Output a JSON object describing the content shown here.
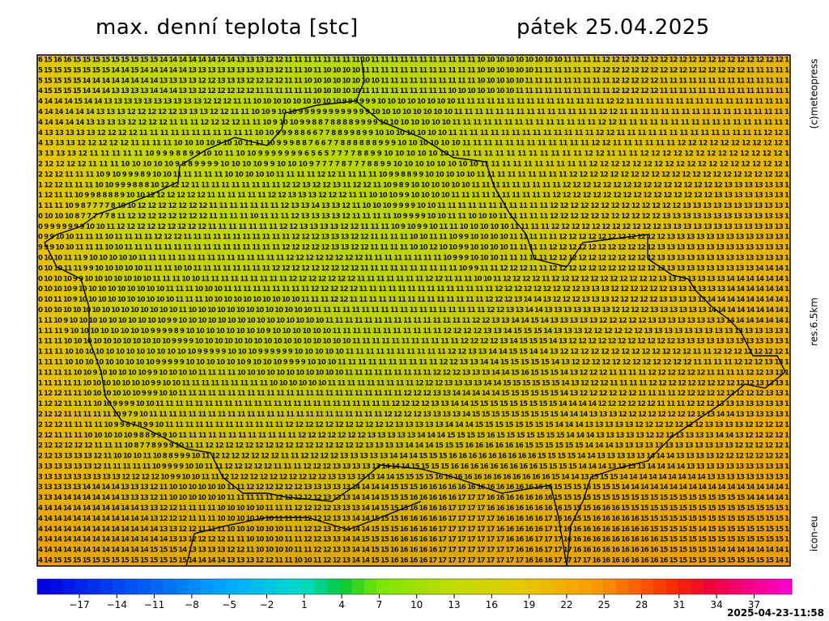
{
  "header": {
    "title": "max. denní teplota [stc]",
    "date": "pátek 25.04.2025"
  },
  "side": {
    "copyright": "(c)meteopress",
    "resolution": "res.6.5km",
    "model": "icon-eu"
  },
  "footer": {
    "timestamp": "2025-04-23-11:58"
  },
  "colorbar": {
    "labels": [
      "−17",
      "−14",
      "−11",
      "−8",
      "−5",
      "−2",
      "1",
      "4",
      "7",
      "10",
      "13",
      "16",
      "19",
      "22",
      "25",
      "28",
      "31",
      "34",
      "37"
    ]
  },
  "map": {
    "rows": [
      "6 15 16 16 15 15 15 15 15 15 15 15 15 14 14 14 14 14 14 14 14 13 13 13 12 12 11 11 11 11 11 11 11 11 10 11 11 11 11 11 11 11 11 11 11 11 10 10 10 10 10 10 10 10 10 11 11 11 11 12 12 12 12 12 12 12 12 12 12 12 12 12 12 12 12 12 12 12 1",
      "5 15 15 15 15 15 15 15 14 14 15 14 14 14 14 14 13 13 13 13 13 13 13 13 13 12 11 11 10 11 10 10 10 10 11 11 11 11 11 11 11 11 11 11 11 11 10 10 10 10 10 10 11 11 11 11 11 11 12 12 12 12 12 12 12 12 12 12 12 12 12 12 12 12 11 11 11 11 1",
      "5 15 15 15 15 14 14 14 14 14 14 14 14 13 13 13 13 12 12 13 13 13 12 12 12 12 11 11 10 10 10 10 10 10 10 10 11 11 11 11 11 11 11 11 11 11 10 10 10 10 10 11 11 11 11 11 11 11 11 11 12 12 12 12 12 11 11 11 11 11 11 11 11 11 11 11 11 11 1",
      "4 15 15 15 15 14 14 14 13 13 13 13 14 14 14 13 13 12 12 12 12 12 12 11 11 11 11 11 11 10 10 10 10 10 11 11 11 11 11 11 11 11 11 10 10 10 10 10 10 10 11 11 11 11 11 11 11 11 11 11 12 12 12 12 12 11 11 11 11 11 11 11 11 11 11 11 11 11 1",
      "4 14 14 14 15 14 14 13 13 13 13 13 13 13 13 13 13 12 12 12 11 11 10 10 10 10 10 10 10 10 10 9 9 9 9 9 9 10 10 10 10 10 10 10 10 11 11 11 11 11 11 11 11 11 11 11 11 11 11 11 12 12 11 11 11 11 11 11 11 11 11 11 11 11 11 11 11 11 1",
      "4 14 14 14 14 14 13 13 13 12 12 12 12 12 13 13 13 12 12 11 11 10 10 9 10 10 9 9 9 9 9 9 9 9 9 9 9 9 10 10 10 10 10 10 10 10 11 11 11 11 11 11 11 11 11 11 11 11 11 11 12 12 11 11 11 11 11 11 11 11 11 11 11 11 11 11 11 11 1",
      "4 14 14 14 14 13 13 13 13 12 12 12 12 11 11 11 12 12 12 12 11 11 10 9 10 10 9 9 8 8 7 8 8 8 8 9 9 9 9 10 10 10 10 10 10 10 11 11 11 11 11 11 11 11 11 11 11 11 11 11 12 12 11 11 11 11 11 11 11 11 11 11 11 11 11 11 11 11 1",
      "4 13 13 13 13 13 12 12 12 12 11 11 11 11 11 11 11 11 11 11 11 10 10 9 9 9 8 8 6 6 7 7 8 8 9 9 8 9 9 10 10 10 10 10 10 10 11 11 11 11 11 11 11 11 11 11 11 11 11 11 12 12 11 11 11 11 11 11 11 11 11 11 11 11 11 11 12 12 1",
      "4 13 13 13 12 12 12 12 12 11 11 11 11 10 10 10 10 9 10 10 11 11 10 9 9 9 8 8 7 6 6 7 7 8 8 8 8 8 8 9 9 9 10 10 10 10 10 10 11 11 11 11 11 11 11 11 11 11 11 11 12 12 11 11 11 11 11 11 12 12 12 12 12 12 12 12 12 12 1",
      "3 13 13 13 12 11 11 11 11 11 10 9 9 9 8 8 9 9 10 10 11 10 10 9 9 9 9 9 9 9 6 5 6 5 7 7 7 7 8 8 9 9 10 10 10 10 10 10 11 11 11 11 11 11 11 11 11 11 11 11 12 12 11 11 11 12 12 12 12 12 12 12 12 12 12 12 12 12 1",
      "2 12 12 12 12 11 11 11 10 10 10 10 10 9 8 8 9 9 9 9 10 10 10 10 9 9 10 10 10 9 7 7 7 7 8 7 7 7 8 8 9 9 10 10 10 10 10 10 10 10 11 11 11 11 11 11 11 11 11 11 12 12 12 12 12 12 12 12 12 12 12 12 12 12 12 12 12 12 1",
      "2 12 12 11 11 11 10 9 10 9 9 9 8 9 10 10 11 11 11 11 11 10 10 10 10 10 11 11 11 11 12 12 11 11 11 11 10 9 9 8 8 9 9 10 10 10 10 10 11 11 11 11 11 11 11 11 11 12 12 12 12 12 12 12 12 12 12 12 12 12 12 12 12 12 12 12 12 12 1",
      "1 12 12 11 11 11 10 10 9 9 9 8 8 8 10 12 12 12 11 11 11 11 11 11 11 11 11 12 12 13 12 12 13 11 12 12 11 10 9 8 9 10 10 10 10 10 10 11 11 11 11 11 11 11 11 11 12 12 12 12 12 12 12 12 12 12 12 12 12 12 12 12 13 13 13 13 13 13 1",
      "1 12 11 11 10 9 9 8 8 8 8 9 10 10 12 12 12 12 12 12 11 11 11 11 11 11 12 12 13 13 13 12 12 12 11 11 10 10 10 9 9 10 10 10 10 11 11 11 11 11 11 11 11 11 11 12 12 12 12 12 12 12 12 12 12 12 12 12 12 12 12 13 13 13 13 13 13 13 1",
      "1 11 11 10 9 8 7 7 7 7 8 10 10 12 12 12 12 12 12 12 11 11 11 11 11 11 11 12 13 13 14 13 13 12 11 10 10 10 9 9 9 9 10 10 11 11 11 11 11 11 11 11 11 11 11 12 12 12 12 12 12 12 12 12 12 12 12 12 13 13 13 13 13 13 13 13 13 13 1",
      "0 10 10 10 8 7 7 7 7 7 8 11 12 12 12 12 12 12 12 12 11 11 11 11 10 11 11 11 12 13 13 13 13 12 11 11 11 11 10 9 9 9 9 10 10 11 11 10 10 10 11 11 11 11 11 12 12 12 12 12 12 12 12 12 12 12 13 13 13 13 13 13 13 13 13 13 13 13 1",
      "0 9 9 9 9 9 9 9 10 10 11 12 12 12 12 12 12 12 12 12 11 11 11 11 11 11 11 12 12 13 13 13 13 12 12 11 11 11 10 9 10 9 9 10 11 11 10 10 10 10 10 11 11 11 11 12 12 12 12 12 12 12 12 12 12 12 13 13 13 13 13 13 13 13 13 13 13 13 1",
      "0 9 9 10 10 11 11 11 10 11 11 11 11 12 12 12 11 11 11 11 11 11 11 11 11 11 11 12 12 12 13 13 13 12 12 11 11 11 11 10 10 11 11 10 9 9 10 10 10 10 11 11 11 11 11 12 12 12 12 12 12 12 12 12 12 12 13 13 13 13 13 13 13 13 13 13 13 13 1",
      "9 9 9 10 10 11 11 11 10 10 11 11 11 11 11 11 11 11 11 11 11 11 11 11 11 11 12 12 12 12 12 13 13 12 12 11 11 11 11 10 10 12 10 10 9 9 10 10 10 10 11 11 11 11 12 12 12 12 12 12 12 12 12 12 12 13 13 13 13 13 13 13 13 13 13 13 13 13 1",
      "0 10 10 11 11 9 10 10 10 10 10 11 11 11 11 11 11 11 11 11 11 11 11 11 11 11 12 12 12 12 12 12 12 12 11 11 11 11 11 11 11 11 10 9 9 9 10 10 10 11 11 11 11 11 12 12 12 12 12 12 12 12 12 12 12 13 13 13 13 13 13 13 13 13 13 13 13 13 1",
      "0 10 10 11 11 9 9 10 10 10 10 10 11 11 11 10 10 11 11 11 11 11 11 11 11 12 12 12 12 12 12 12 12 12 11 11 11 11 11 11 11 11 11 11 10 9 9 11 11 12 12 12 11 11 12 12 12 12 12 12 12 12 12 12 12 13 13 13 13 13 13 13 13 13 13 14 14 14 1",
      "0 10 10 10 9 9 10 10 10 10 10 10 10 11 11 11 10 10 11 11 11 11 11 11 11 11 11 12 12 12 12 12 12 12 11 11 11 11 11 11 11 12 12 11 11 11 10 10 11 12 12 12 12 11 12 12 12 12 12 12 12 12 12 12 12 13 13 13 13 13 13 13 14 14 14 14 14 14 1",
      "0 10 10 10 9 10 10 10 10 10 10 10 10 10 11 11 11 10 10 10 11 11 11 11 11 11 11 11 11 12 12 12 12 12 11 11 11 11 11 11 11 11 11 11 11 11 11 11 12 12 12 12 12 12 12 12 12 13 13 13 12 12 12 12 12 12 13 13 13 13 13 13 14 14 14 14 14 14 1",
      "0 10 11 10 9 10 10 10 10 10 10 10 10 10 10 11 11 11 10 10 10 10 10 10 10 10 10 10 11 11 11 12 12 11 11 11 11 11 11 11 11 11 11 11 11 11 11 12 12 12 13 14 14 13 12 12 12 13 13 13 12 12 12 12 12 13 13 13 13 13 14 14 14 14 14 14 14 14 1",
      "0 10 10 10 10 10 10 10 10 10 10 10 10 10 10 11 10 10 10 10 10 10 10 10 10 10 10 10 10 11 11 11 11 11 11 11 11 11 11 11 11 11 11 11 11 11 11 12 12 13 13 14 14 13 13 13 13 13 13 13 12 12 12 12 13 13 13 13 13 13 14 14 14 14 14 14 14 14 1",
      "1 11 10 9 10 10 10 10 10 10 10 10 10 10 9 9 10 10 10 10 10 10 10 10 10 10 10 10 10 10 10 11 11 11 11 11 11 11 11 11 11 11 11 11 11 11 12 12 13 13 14 14 15 14 13 13 13 13 13 12 12 12 12 12 13 13 13 13 13 13 13 13 14 14 14 14 14 14 1",
      "1 11 11 9 10 10 10 10 10 10 10 10 9 9 9 9 8 9 10 10 10 10 10 10 10 10 9 10 10 10 10 10 10 11 11 11 11 11 11 11 11 11 11 11 12 12 12 12 13 13 14 15 15 15 14 13 13 13 12 12 12 12 12 12 13 13 13 13 13 13 13 13 13 13 13 13 13 13 1",
      "1 11 11 10 10 10 10 10 10 10 10 10 10 10 9 9 9 9 10 10 10 10 10 10 10 10 10 10 10 10 10 10 10 10 11 11 11 11 11 11 11 11 11 11 11 12 12 12 12 13 14 15 15 15 14 13 12 12 12 12 12 12 12 12 12 12 12 13 13 13 13 13 13 13 13 13 13 13 1",
      "1 11 11 10 10 10 10 10 10 10 10 10 10 10 10 10 9 9 9 9 9 10 10 10 9 9 9 9 9 9 10 10 10 10 10 11 11 11 11 11 11 11 11 11 11 12 12 13 13 14 14 15 15 14 14 13 12 12 12 12 12 12 12 12 12 12 12 12 12 11 11 12 12 12 12 12 12 12 1",
      "1 11 11 10 10 10 10 10 10 10 10 10 9 9 9 9 9 10 10 10 10 10 10 9 10 10 10 9 9 9 9 10 10 10 11 11 11 11 11 11 11 11 11 11 12 12 13 13 14 14 15 15 15 15 15 14 13 12 12 12 12 12 12 12 12 12 12 12 12 11 11 11 11 12 12 12 13 13 1",
      "1 11 11 11 10 10 9 10 10 10 10 10 9 9 10 10 10 10 11 11 11 11 10 10 10 10 10 10 10 10 10 10 10 11 11 11 11 11 11 11 11 11 12 12 12 13 13 13 14 14 15 16 15 15 15 14 13 12 12 12 11 11 11 11 12 12 12 12 12 12 11 11 11 11 12 12 13 13 1",
      "1 11 11 11 11 10 10 10 10 10 10 10 9 9 10 10 11 11 11 11 11 11 11 11 11 10 10 10 10 10 10 11 11 11 11 11 11 11 11 11 12 12 12 13 13 13 13 14 14 15 15 15 15 15 15 14 13 12 12 12 11 11 11 11 12 12 12 12 12 12 12 12 12 12 12 13 13 13 1",
      "1 12 12 11 11 10 10 10 10 10 10 9 9 9 10 10 11 11 11 11 11 11 11 11 11 11 11 11 11 11 11 11 11 11 11 11 11 11 11 12 12 12 13 13 14 14 14 14 14 15 15 15 15 15 15 14 13 12 12 12 12 12 12 11 11 11 11 12 12 12 12 12 12 12 12 12 13 13 1",
      "1 12 12 11 11 11 10 10 9 9 9 9 10 10 11 11 11 11 11 11 11 11 11 11 11 11 11 11 11 11 11 11 11 11 11 11 11 11 12 12 12 12 13 13 14 14 15 15 15 15 15 15 15 15 15 14 14 14 14 12 12 12 12 12 12 11 11 11 12 12 12 13 13 13 13 13 13 13 1",
      "2 12 12 11 11 11 11 11 10 9 7 9 10 11 11 11 11 11 11 11 11 11 11 11 11 11 11 11 11 11 11 11 11 11 11 11 11 12 12 12 12 13 13 13 13 14 15 15 15 15 15 15 15 15 15 14 14 14 13 13 13 12 12 12 12 12 12 12 12 13 13 14 14 13 13 13 13 13 1",
      "2 12 12 11 11 11 11 10 9 9 8 7 8 9 9 10 11 11 11 11 11 11 11 11 11 11 11 11 12 12 12 12 12 12 12 12 12 12 12 13 13 13 13 13 14 14 14 15 15 15 15 15 15 15 15 14 14 14 13 13 13 13 13 12 12 12 12 12 12 12 13 13 13 13 12 12 12 12 1",
      "2 12 11 11 11 10 10 10 10 10 9 8 8 9 9 9 10 11 11 11 11 11 11 11 11 11 11 11 11 12 12 12 12 12 12 12 13 13 13 13 13 14 14 14 15 15 15 15 16 15 15 15 15 15 15 15 14 14 14 13 13 13 13 13 12 12 12 13 13 13 13 14 14 13 12 12 12 12 1",
      "2 12 12 12 12 12 11 11 11 10 8 7 7 8 9 9 9 10 11 11 12 12 12 12 12 12 12 12 12 12 12 12 12 12 12 12 13 13 13 13 14 14 14 15 15 15 16 16 16 16 16 16 15 15 15 15 15 15 14 14 14 13 13 13 13 13 13 13 13 13 13 13 13 12 12 12 12 12 1",
      "2 12 13 13 13 13 12 11 10 10 10 11 10 8 8 9 9 9 10 11 12 12 12 12 12 12 12 11 11 12 12 12 12 13 13 13 13 13 14 14 14 15 15 15 16 16 16 16 16 16 16 16 16 15 15 15 15 14 14 13 13 13 13 13 14 14 14 13 13 13 13 12 12 12 12 12 12 12 1",
      "3 13 13 13 13 13 12 11 11 11 11 11 10 9 9 9 9 10 10 11 11 12 12 12 12 12 11 11 11 12 12 12 13 13 13 13 13 14 14 14 15 15 15 15 16 16 16 16 16 16 16 16 16 15 15 15 15 14 14 14 13 13 13 13 14 14 14 14 13 13 13 13 13 13 13 13 13 13 1",
      "3 13 13 13 13 13 13 13 13 12 12 12 12 10 9 9 10 10 11 11 12 12 12 12 12 12 12 12 12 12 12 13 13 13 13 13 14 14 15 15 15 15 16 16 16 16 16 16 16 16 16 16 16 16 15 14 14 13 15 15 15 14 14 14 14 14 14 14 14 14 13 13 13 13 13 13 13 13 1",
      "3 13 13 13 13 14 14 14 14 13 13 13 12 11 10 10 10 10 10 10 11 11 12 12 12 12 12 12 13 13 13 13 13 14 14 14 14 15 15 15 16 16 16 16 16 16 16 16 16 16 16 16 16 16 15 15 15 15 15 15 15 14 14 14 14 14 14 14 14 14 14 14 14 14 14 14 14 14 1",
      "3 13 14 14 14 14 14 14 14 13 13 13 12 11 10 10 10 10 10 10 11 11 11 11 11 12 12 12 12 12 13 13 13 14 14 14 15 15 15 16 16 16 16 16 17 17 17 16 16 16 16 16 16 16 15 15 15 15 15 15 15 15 15 15 15 15 15 15 15 15 15 15 15 15 14 14 14 14 1",
      "4 14 14 14 14 14 14 14 14 14 14 13 13 12 12 11 11 11 11 10 10 10 10 10 11 11 11 12 12 12 12 13 13 13 14 14 15 15 15 16 16 16 16 17 17 17 17 16 16 16 16 16 16 16 16 15 15 15 16 16 16 15 15 15 15 15 15 15 15 15 15 15 15 15 15 15 15 15 1",
      "4 14 14 14 14 14 14 14 14 14 14 14 13 12 12 12 11 11 11 10 10 10 10 10 10 11 11 11 12 12 12 13 13 14 14 15 15 15 16 16 16 16 16 17 17 17 17 17 16 16 16 16 16 17 16 16 15 15 16 16 16 16 16 15 15 15 15 15 15 15 15 15 15 15 15 15 15 15 1",
      "4 14 14 14 14 14 14 14 14 14 14 14 14 13 13 12 12 11 11 11 10 10 10 10 10 10 11 11 12 12 13 13 14 14 14 15 15 15 16 16 16 16 17 17 17 17 17 17 16 16 16 16 16 17 17 16 16 16 16 16 16 16 16 16 15 15 15 15 15 14 15 15 15 15 15 15 15 15 1",
      "4 14 14 14 14 14 14 14 14 14 14 14 14 14 13 13 12 12 12 12 11 11 10 10 10 10 11 11 12 12 13 13 14 14 15 15 15 16 16 16 16 16 17 17 17 17 17 17 17 16 16 16 17 17 17 16 16 16 16 16 16 16 16 16 16 15 15 15 15 15 15 15 15 15 15 15 15 15 1",
      "4 14 14 14 14 14 14 14 14 14 14 14 15 15 15 14 13 13 13 13 12 12 11 10 10 10 10 11 11 12 12 13 13 14 14 15 15 16 16 16 16 16 17 17 17 17 17 17 17 17 16 16 16 17 17 17 16 16 16 16 16 16 16 16 16 15 15 15 15 15 15 14 14 14 14 14 14 14 1",
      "4 14 15 15 15 15 15 15 15 15 15 15 15 15 15 15 14 14 14 14 13 13 13 12 12 11 11 10 10 11 12 12 13 14 14 15 15 16 16 16 16 17 17 17 17 17 17 17 17 17 17 16 16 16 17 17 17 17 16 16 16 16 16 16 16 16 15 15 15 15 15 15 15 15 15 15 15 14 1"
    ]
  }
}
